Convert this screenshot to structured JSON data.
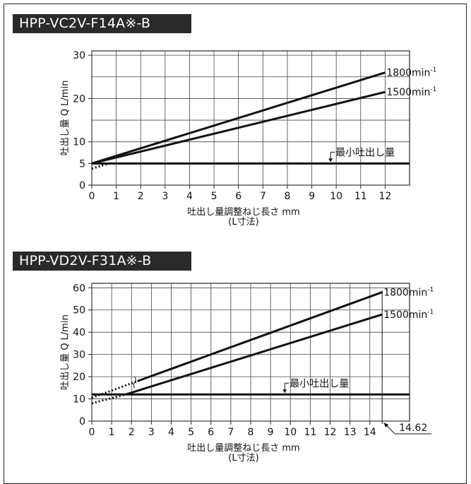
{
  "chart_data": [
    {
      "type": "line",
      "title": "HPP-VC2V-F14A※-B",
      "xlabel": "吐出し量調整ねじ長さ mm",
      "xlabel2": "(L寸法)",
      "ylabel": "吐出し量 Q L/min",
      "xlim": [
        0,
        13
      ],
      "ylim": [
        0,
        31
      ],
      "x_ticks": [
        0,
        1,
        2,
        3,
        4,
        5,
        6,
        7,
        8,
        9,
        10,
        11,
        12
      ],
      "y_ticks": [
        0,
        5,
        10,
        20,
        30
      ],
      "grid": true,
      "series": [
        {
          "name": "1800min-1",
          "x": [
            0,
            12
          ],
          "y": [
            5,
            26
          ]
        },
        {
          "name": "1500min-1",
          "x": [
            0,
            12
          ],
          "y": [
            5,
            21.5
          ]
        },
        {
          "name": "最小吐出し量",
          "x": [
            0,
            13
          ],
          "y": [
            5,
            5
          ]
        }
      ],
      "dotted_segment": {
        "x": [
          0,
          0.7
        ],
        "y": [
          3.8,
          5
        ]
      },
      "label_1800": "1800min",
      "label_1500": "1500min",
      "sup": "-1",
      "min_label": "最小吐出し量"
    },
    {
      "type": "line",
      "title": "HPP-VD2V-F31A※-B",
      "xlabel": "吐出し量調整ねじ長さ mm",
      "xlabel2": "(L寸法)",
      "ylabel": "吐出し量 Q L/min",
      "xlim": [
        0,
        16
      ],
      "ylim": [
        0,
        62
      ],
      "x_ticks": [
        0,
        1,
        2,
        3,
        4,
        5,
        6,
        7,
        8,
        9,
        10,
        11,
        12,
        13,
        14
      ],
      "y_ticks": [
        0,
        10,
        20,
        30,
        40,
        50,
        60
      ],
      "grid": true,
      "series": [
        {
          "name": "1800min-1",
          "x": [
            2.3,
            14.62
          ],
          "y": [
            18,
            58
          ]
        },
        {
          "name": "1500min-1",
          "x": [
            1.7,
            14.62
          ],
          "y": [
            12,
            48
          ]
        },
        {
          "name": "最小吐出し量",
          "x": [
            0,
            16
          ],
          "y": [
            12,
            12
          ]
        }
      ],
      "dotted_segments": [
        {
          "x": [
            0,
            2.3
          ],
          "y": [
            10.5,
            18
          ]
        },
        {
          "x": [
            0,
            1.7
          ],
          "y": [
            8,
            12
          ]
        }
      ],
      "label_1800": "1800min",
      "label_1500": "1500min",
      "sup": "-1",
      "min_label": "最小吐出し量",
      "limit_x": 14.62,
      "limit_label": "14.62"
    }
  ]
}
